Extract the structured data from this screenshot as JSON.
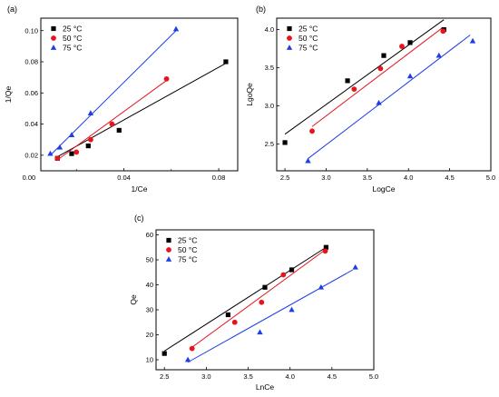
{
  "chart_data": [
    {
      "type": "scatter",
      "panel_label": "(a)",
      "xlabel": "1/Ce",
      "ylabel": "1/Qe",
      "xlim": [
        0.005,
        0.088
      ],
      "ylim": [
        0.01,
        0.108
      ],
      "xticks": [
        "0.00",
        "0.04",
        "0.08"
      ],
      "xtick_values": [
        0.0,
        0.04,
        0.08
      ],
      "xminor_values": [
        0.02,
        0.06
      ],
      "yticks": [
        "0.02",
        "0.04",
        "0.06",
        "0.08",
        "0.10"
      ],
      "ytick_values": [
        0.02,
        0.04,
        0.06,
        0.08,
        0.1
      ],
      "legend_position": "top-left",
      "series": [
        {
          "name": "25 °C",
          "marker": "square",
          "color": "#000000",
          "points": [
            [
              0.012,
              0.018
            ],
            [
              0.018,
              0.021
            ],
            [
              0.025,
              0.026
            ],
            [
              0.038,
              0.036
            ],
            [
              0.083,
              0.08
            ]
          ],
          "fit": [
            [
              0.012,
              0.019
            ],
            [
              0.083,
              0.079
            ]
          ]
        },
        {
          "name": "50 °C",
          "marker": "circle",
          "color": "#e8141c",
          "points": [
            [
              0.012,
              0.018
            ],
            [
              0.02,
              0.022
            ],
            [
              0.026,
              0.03
            ],
            [
              0.035,
              0.04
            ],
            [
              0.058,
              0.069
            ]
          ],
          "fit": [
            [
              0.012,
              0.017
            ],
            [
              0.058,
              0.068
            ]
          ]
        },
        {
          "name": "75 °C",
          "marker": "triangle",
          "color": "#1f3ee8",
          "points": [
            [
              0.009,
              0.021
            ],
            [
              0.013,
              0.025
            ],
            [
              0.018,
              0.033
            ],
            [
              0.026,
              0.047
            ],
            [
              0.062,
              0.101
            ]
          ],
          "fit": [
            [
              0.009,
              0.02
            ],
            [
              0.062,
              0.1
            ]
          ]
        }
      ]
    },
    {
      "type": "scatter",
      "panel_label": "(b)",
      "xlabel": "LogCe",
      "ylabel": "LgoQe",
      "xlim": [
        2.4,
        5.0
      ],
      "ylim": [
        2.15,
        4.15
      ],
      "xticks": [
        "2.5",
        "3.0",
        "3.5",
        "4.0",
        "4.5",
        "5.0"
      ],
      "xtick_values": [
        2.5,
        3.0,
        3.5,
        4.0,
        4.5,
        5.0
      ],
      "yticks": [
        "2.5",
        "3.0",
        "3.5",
        "4.0"
      ],
      "ytick_values": [
        2.5,
        3.0,
        3.5,
        4.0
      ],
      "legend_position": "top-left",
      "series": [
        {
          "name": "25 °C",
          "marker": "square",
          "color": "#000000",
          "points": [
            [
              2.5,
              2.52
            ],
            [
              3.26,
              3.33
            ],
            [
              3.7,
              3.66
            ],
            [
              4.02,
              3.83
            ],
            [
              4.43,
              4.0
            ]
          ],
          "fit": [
            [
              2.5,
              2.63
            ],
            [
              4.43,
              4.13
            ]
          ]
        },
        {
          "name": "50 °C",
          "marker": "circle",
          "color": "#e8141c",
          "points": [
            [
              2.83,
              2.67
            ],
            [
              3.34,
              3.22
            ],
            [
              3.66,
              3.49
            ],
            [
              3.92,
              3.78
            ],
            [
              4.42,
              3.98
            ]
          ],
          "fit": [
            [
              2.83,
              2.73
            ],
            [
              4.42,
              4.03
            ]
          ]
        },
        {
          "name": "75 °C",
          "marker": "triangle",
          "color": "#1f3ee8",
          "points": [
            [
              2.78,
              2.28
            ],
            [
              3.64,
              3.04
            ],
            [
              4.02,
              3.39
            ],
            [
              4.37,
              3.66
            ],
            [
              4.78,
              3.85
            ]
          ],
          "fit": [
            [
              2.78,
              2.31
            ],
            [
              4.75,
              3.93
            ]
          ]
        }
      ]
    },
    {
      "type": "scatter",
      "panel_label": "(c)",
      "xlabel": "LnCe",
      "ylabel": "Qe",
      "xlim": [
        2.4,
        5.0
      ],
      "ylim": [
        6,
        62
      ],
      "xticks": [
        "2.5",
        "3.0",
        "3.5",
        "4.0",
        "4.5",
        "5.0"
      ],
      "xtick_values": [
        2.5,
        3.0,
        3.5,
        4.0,
        4.5,
        5.0
      ],
      "yticks": [
        "10",
        "20",
        "30",
        "40",
        "50",
        "60"
      ],
      "ytick_values": [
        10,
        20,
        30,
        40,
        50,
        60
      ],
      "legend_position": "top-left",
      "series": [
        {
          "name": "25 °C",
          "marker": "square",
          "color": "#000000",
          "points": [
            [
              2.5,
              12.5
            ],
            [
              3.26,
              28
            ],
            [
              3.7,
              39
            ],
            [
              4.02,
              46
            ],
            [
              4.43,
              55
            ]
          ],
          "fit": [
            [
              2.5,
              13.5
            ],
            [
              4.43,
              55
            ]
          ]
        },
        {
          "name": "50 °C",
          "marker": "circle",
          "color": "#e8141c",
          "points": [
            [
              2.83,
              14.5
            ],
            [
              3.34,
              25
            ],
            [
              3.66,
              33
            ],
            [
              3.92,
              44
            ],
            [
              4.42,
              53.5
            ]
          ],
          "fit": [
            [
              2.83,
              15
            ],
            [
              4.42,
              54
            ]
          ]
        },
        {
          "name": "75 °C",
          "marker": "triangle",
          "color": "#1f3ee8",
          "points": [
            [
              2.78,
              10
            ],
            [
              3.64,
              21
            ],
            [
              4.02,
              30
            ],
            [
              4.37,
              39
            ],
            [
              4.78,
              47
            ]
          ],
          "fit": [
            [
              2.78,
              9
            ],
            [
              4.75,
              46
            ]
          ]
        }
      ]
    }
  ]
}
